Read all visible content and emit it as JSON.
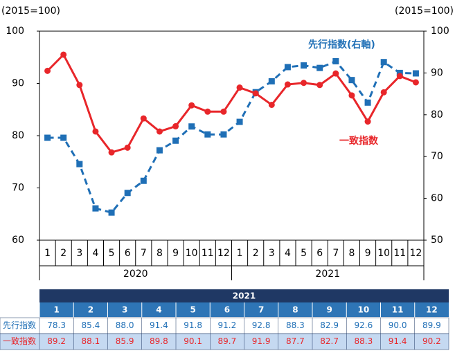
{
  "chart_data": {
    "type": "line",
    "y_label": "(2015=100)",
    "y2_label": "(2015=100)",
    "categories": [
      "1",
      "2",
      "3",
      "4",
      "5",
      "6",
      "7",
      "8",
      "9",
      "10",
      "11",
      "12",
      "1",
      "2",
      "3",
      "4",
      "5",
      "6",
      "7",
      "8",
      "9",
      "10",
      "11",
      "12"
    ],
    "groups": [
      "2020",
      "2021"
    ],
    "ylim": [
      60,
      100
    ],
    "yticks": [
      60,
      70,
      80,
      90,
      100
    ],
    "y2lim": [
      50,
      100
    ],
    "y2ticks": [
      50,
      60,
      70,
      80,
      90,
      100
    ],
    "series": [
      {
        "name": "先行指数(右軸)",
        "color": "#1f6fb6",
        "axis": "y2",
        "values": [
          74.5,
          74.5,
          68.2,
          57.6,
          56.6,
          61.3,
          64.2,
          71.5,
          73.8,
          77.2,
          75.3,
          75.3,
          78.3,
          85.4,
          88.0,
          91.4,
          91.8,
          91.2,
          92.8,
          88.3,
          82.9,
          92.6,
          90.0,
          89.9
        ]
      },
      {
        "name": "一致指数",
        "color": "#e8262a",
        "values": [
          92.4,
          95.5,
          89.7,
          80.8,
          76.8,
          77.7,
          83.3,
          80.8,
          81.8,
          85.8,
          84.6,
          84.6,
          89.2,
          88.1,
          85.9,
          89.8,
          90.1,
          89.7,
          91.9,
          87.7,
          82.7,
          88.3,
          91.4,
          90.2
        ]
      }
    ]
  },
  "table": {
    "title": "2021",
    "columns": [
      "1",
      "2",
      "3",
      "4",
      "5",
      "6",
      "7",
      "8",
      "9",
      "10",
      "11",
      "12"
    ],
    "rows": [
      {
        "label": "先行指数",
        "cells": [
          "78.3",
          "85.4",
          "88.0",
          "91.4",
          "91.8",
          "91.2",
          "92.8",
          "88.3",
          "82.9",
          "92.6",
          "90.0",
          "89.9"
        ]
      },
      {
        "label": "一致指数",
        "cells": [
          "89.2",
          "88.1",
          "85.9",
          "89.8",
          "90.1",
          "89.7",
          "91.9",
          "87.7",
          "82.7",
          "88.3",
          "91.4",
          "90.2"
        ]
      }
    ]
  }
}
